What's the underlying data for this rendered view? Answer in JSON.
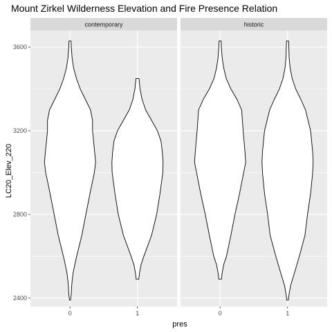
{
  "chart_data": {
    "type": "violin",
    "title": "Mount Zirkel Wilderness Elevation and Fire Presence Relation",
    "xlabel": "pres",
    "ylabel": "LC20_Elev_220",
    "ylim": [
      2360,
      3680
    ],
    "yticks": [
      2400,
      2800,
      3200,
      3600
    ],
    "x_categories": [
      "0",
      "1"
    ],
    "facets": [
      {
        "label": "contemporary",
        "violins": [
          {
            "category": "0",
            "min": 2390,
            "max": 3630,
            "profile": [
              [
                2390,
                0.02
              ],
              [
                2420,
                0.05
              ],
              [
                2450,
                0.06
              ],
              [
                2480,
                0.08
              ],
              [
                2520,
                0.12
              ],
              [
                2580,
                0.22
              ],
              [
                2650,
                0.36
              ],
              [
                2700,
                0.46
              ],
              [
                2800,
                0.62
              ],
              [
                2900,
                0.78
              ],
              [
                3000,
                0.95
              ],
              [
                3050,
                1.0
              ],
              [
                3100,
                0.96
              ],
              [
                3150,
                0.92
              ],
              [
                3200,
                0.88
              ],
              [
                3250,
                0.88
              ],
              [
                3300,
                0.8
              ],
              [
                3350,
                0.6
              ],
              [
                3400,
                0.4
              ],
              [
                3450,
                0.25
              ],
              [
                3500,
                0.14
              ],
              [
                3550,
                0.08
              ],
              [
                3600,
                0.05
              ],
              [
                3630,
                0.04
              ]
            ]
          },
          {
            "category": "1",
            "min": 2490,
            "max": 3450,
            "profile": [
              [
                2490,
                0.05
              ],
              [
                2520,
                0.08
              ],
              [
                2560,
                0.14
              ],
              [
                2600,
                0.25
              ],
              [
                2650,
                0.4
              ],
              [
                2700,
                0.55
              ],
              [
                2750,
                0.65
              ],
              [
                2800,
                0.75
              ],
              [
                2900,
                0.88
              ],
              [
                3000,
                0.99
              ],
              [
                3050,
                1.0
              ],
              [
                3100,
                0.97
              ],
              [
                3150,
                0.92
              ],
              [
                3200,
                0.78
              ],
              [
                3250,
                0.55
              ],
              [
                3300,
                0.32
              ],
              [
                3350,
                0.18
              ],
              [
                3400,
                0.1
              ],
              [
                3450,
                0.06
              ]
            ]
          }
        ]
      },
      {
        "label": "historic",
        "violins": [
          {
            "category": "0",
            "min": 2490,
            "max": 3630,
            "profile": [
              [
                2490,
                0.05
              ],
              [
                2520,
                0.08
              ],
              [
                2560,
                0.14
              ],
              [
                2600,
                0.25
              ],
              [
                2700,
                0.42
              ],
              [
                2800,
                0.58
              ],
              [
                2900,
                0.76
              ],
              [
                3000,
                0.92
              ],
              [
                3050,
                1.0
              ],
              [
                3100,
                0.97
              ],
              [
                3200,
                0.9
              ],
              [
                3300,
                0.84
              ],
              [
                3350,
                0.66
              ],
              [
                3400,
                0.42
              ],
              [
                3450,
                0.24
              ],
              [
                3500,
                0.14
              ],
              [
                3550,
                0.08
              ],
              [
                3600,
                0.05
              ],
              [
                3630,
                0.04
              ]
            ]
          },
          {
            "category": "1",
            "min": 2390,
            "max": 3630,
            "profile": [
              [
                2390,
                0.03
              ],
              [
                2420,
                0.06
              ],
              [
                2460,
                0.12
              ],
              [
                2500,
                0.22
              ],
              [
                2550,
                0.34
              ],
              [
                2600,
                0.46
              ],
              [
                2700,
                0.68
              ],
              [
                2800,
                0.78
              ],
              [
                2900,
                0.9
              ],
              [
                3000,
                0.98
              ],
              [
                3050,
                1.0
              ],
              [
                3100,
                0.98
              ],
              [
                3200,
                0.9
              ],
              [
                3300,
                0.7
              ],
              [
                3350,
                0.52
              ],
              [
                3400,
                0.32
              ],
              [
                3450,
                0.18
              ],
              [
                3500,
                0.1
              ],
              [
                3550,
                0.06
              ],
              [
                3600,
                0.05
              ],
              [
                3630,
                0.04
              ]
            ]
          }
        ]
      }
    ],
    "fill": "#ffffff",
    "outline": "#000000",
    "panel_background": "#ebebeb",
    "strip_background": "#d9d9d9",
    "grid": true,
    "legend": "none"
  }
}
